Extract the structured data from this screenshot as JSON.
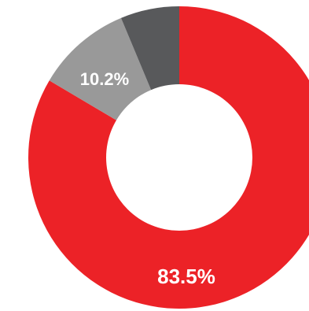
{
  "chart_data": {
    "type": "pie",
    "donut": true,
    "slices": [
      {
        "label": "83.5%",
        "value": 83.5,
        "color": "#ec2227"
      },
      {
        "label": "10.2%",
        "value": 10.2,
        "color": "#999999"
      },
      {
        "label": "",
        "value": 6.3,
        "color": "#58595b"
      }
    ]
  }
}
